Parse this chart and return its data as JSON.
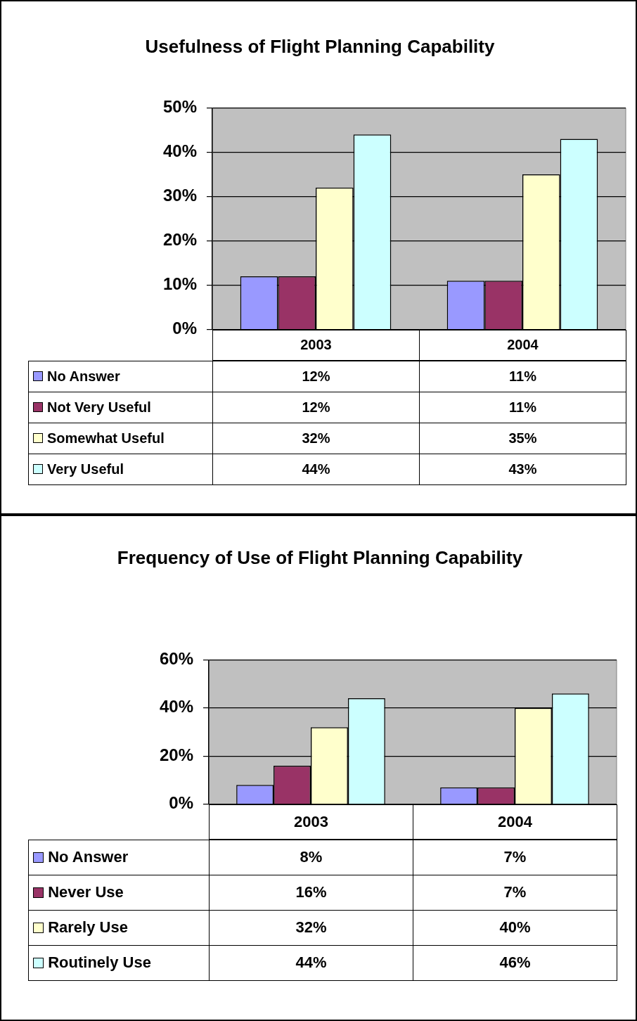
{
  "chart_data": [
    {
      "type": "bar",
      "title": "Usefulness of Flight Planning Capability",
      "categories": [
        "2003",
        "2004"
      ],
      "series": [
        {
          "name": "No Answer",
          "color": "#9999ff",
          "values": [
            12,
            11
          ],
          "value_labels": [
            "12%",
            "11%"
          ]
        },
        {
          "name": "Not Very Useful",
          "color": "#993366",
          "values": [
            12,
            11
          ],
          "value_labels": [
            "12%",
            "11%"
          ]
        },
        {
          "name": "Somewhat Useful",
          "color": "#ffffcc",
          "values": [
            32,
            35
          ],
          "value_labels": [
            "32%",
            "35%"
          ]
        },
        {
          "name": "Very Useful",
          "color": "#ccffff",
          "values": [
            44,
            43
          ],
          "value_labels": [
            "44%",
            "43%"
          ]
        }
      ],
      "ylim": [
        0,
        50
      ],
      "yticks": [
        {
          "value": 0,
          "label": "0%"
        },
        {
          "value": 10,
          "label": "10%"
        },
        {
          "value": 20,
          "label": "20%"
        },
        {
          "value": 30,
          "label": "30%"
        },
        {
          "value": 40,
          "label": "40%"
        },
        {
          "value": 50,
          "label": "50%"
        }
      ],
      "grid": "y",
      "legend": "bottom left"
    },
    {
      "type": "bar",
      "title": "Frequency of Use of Flight Planning Capability",
      "categories": [
        "2003",
        "2004"
      ],
      "series": [
        {
          "name": "No Answer",
          "color": "#9999ff",
          "values": [
            8,
            7
          ],
          "value_labels": [
            "8%",
            "7%"
          ]
        },
        {
          "name": "Never Use",
          "color": "#993366",
          "values": [
            16,
            7
          ],
          "value_labels": [
            "16%",
            "7%"
          ]
        },
        {
          "name": "Rarely Use",
          "color": "#ffffcc",
          "values": [
            32,
            40
          ],
          "value_labels": [
            "32%",
            "40%"
          ]
        },
        {
          "name": "Routinely Use",
          "color": "#ccffff",
          "values": [
            44,
            46
          ],
          "value_labels": [
            "44%",
            "46%"
          ]
        }
      ],
      "ylim": [
        0,
        60
      ],
      "yticks": [
        {
          "value": 0,
          "label": "0%"
        },
        {
          "value": 20,
          "label": "20%"
        },
        {
          "value": 40,
          "label": "40%"
        },
        {
          "value": 60,
          "label": "60%"
        }
      ],
      "grid": "y",
      "legend": "bottom left"
    }
  ]
}
